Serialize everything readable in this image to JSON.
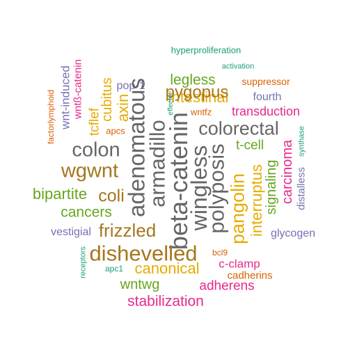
{
  "colors": {
    "green": "#1b9e77",
    "orange": "#d95f02",
    "purple": "#7570b3",
    "magenta": "#e7298a",
    "lime": "#66a61e",
    "gold": "#e6ab02",
    "brown": "#a6761d",
    "gray": "#666666"
  },
  "words": [
    {
      "text": "hyperproliferation",
      "color": "green"
    },
    {
      "text": "activation",
      "color": "green"
    },
    {
      "text": "suppressor",
      "color": "orange"
    },
    {
      "text": "legless",
      "color": "lime"
    },
    {
      "text": "intestinal",
      "color": "gold"
    },
    {
      "text": "pygopus",
      "color": "brown"
    },
    {
      "text": "fourth",
      "color": "purple"
    },
    {
      "text": "pop-1",
      "color": "purple"
    },
    {
      "text": "effector",
      "color": "green"
    },
    {
      "text": "wntfz",
      "color": "orange"
    },
    {
      "text": "transduction",
      "color": "magenta"
    },
    {
      "text": "colorectal",
      "color": "gray"
    },
    {
      "text": "synthase",
      "color": "green"
    },
    {
      "text": "t-cell",
      "color": "lime"
    },
    {
      "text": "carcinoma",
      "color": "magenta"
    },
    {
      "text": "distalless",
      "color": "purple"
    },
    {
      "text": "signaling",
      "color": "lime"
    },
    {
      "text": "interruptus",
      "color": "gold"
    },
    {
      "text": "pangolin",
      "color": "gold"
    },
    {
      "text": "polyposis",
      "color": "gray"
    },
    {
      "text": "wingless",
      "color": "gray"
    },
    {
      "text": "beta-catenin",
      "color": "gray"
    },
    {
      "text": "armadillo",
      "color": "gray"
    },
    {
      "text": "adenomatous",
      "color": "gray"
    },
    {
      "text": "axin",
      "color": "gold"
    },
    {
      "text": "cubitus",
      "color": "gold"
    },
    {
      "text": "tcflef",
      "color": "gold"
    },
    {
      "text": "wntß-catenin",
      "color": "magenta"
    },
    {
      "text": "wnt-induced",
      "color": "purple"
    },
    {
      "text": "factorlymphoid",
      "color": "orange"
    },
    {
      "text": "apcs",
      "color": "orange"
    },
    {
      "text": "colon",
      "color": "gray"
    },
    {
      "text": "wgwnt",
      "color": "brown"
    },
    {
      "text": "bipartite",
      "color": "lime"
    },
    {
      "text": "coli",
      "color": "brown"
    },
    {
      "text": "cancers",
      "color": "lime"
    },
    {
      "text": "frizzled",
      "color": "brown"
    },
    {
      "text": "vestigial",
      "color": "purple"
    },
    {
      "text": "glycogen",
      "color": "purple"
    },
    {
      "text": "dishevelled",
      "color": "brown"
    },
    {
      "text": "receptors",
      "color": "green"
    },
    {
      "text": "bcl9",
      "color": "orange"
    },
    {
      "text": "c-clamp",
      "color": "magenta"
    },
    {
      "text": "canonical",
      "color": "gold"
    },
    {
      "text": "apc1",
      "color": "green"
    },
    {
      "text": "cadherins",
      "color": "orange"
    },
    {
      "text": "wntwg",
      "color": "lime"
    },
    {
      "text": "adherens",
      "color": "magenta"
    },
    {
      "text": "stabilization",
      "color": "magenta"
    }
  ]
}
